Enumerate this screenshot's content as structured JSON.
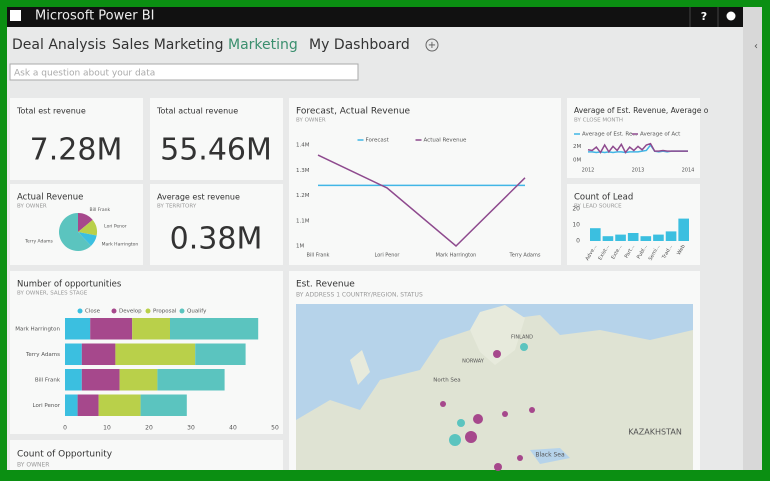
{
  "app_title": "Microsoft Power BI",
  "tabs": [
    "Deal Analysis",
    "Sales Marketing",
    "Marketing",
    "My Dashboard"
  ],
  "active_tab": 2,
  "qa_placeholder": "Ask a question about your data",
  "cards": [
    {
      "title": "Total est revenue",
      "value": "7.28M"
    },
    {
      "title": "Total actual revenue",
      "value": "55.46M"
    },
    {
      "title": "Average est revenue",
      "subtitle": "BY TERRITORY",
      "value": "0.38M"
    }
  ],
  "map": {
    "title": "Est. Revenue",
    "subtitle": "BY ADDRESS 1 COUNTRY/REGION, STATUS",
    "labels": [
      "NORWAY",
      "FINLAND",
      "North Sea",
      "Black Sea",
      "KAZAKHSTAN"
    ]
  },
  "count_opportunity": {
    "title": "Count of Opportunity",
    "subtitle": "BY OWNER"
  },
  "chart_data": [
    {
      "type": "pie",
      "title": "Actual Revenue",
      "subtitle": "BY OWNER",
      "categories": [
        "Bill Frank",
        "Lori Penor",
        "Mark Harrington",
        "Terry Adams"
      ],
      "values": [
        14,
        14,
        10,
        62
      ],
      "colors": [
        "#a6488c",
        "#b9d04a",
        "#3bbfe0",
        "#5bc4bf"
      ]
    },
    {
      "type": "line",
      "title": "Forecast, Actual Revenue",
      "subtitle": "BY OWNER",
      "categories": [
        "Bill Frank",
        "Lori Penor",
        "Mark Harrington",
        "Terry Adams"
      ],
      "series": [
        {
          "name": "Forecast",
          "color": "#41b6e6",
          "values": [
            1240000,
            1240000,
            1240000,
            1240000
          ]
        },
        {
          "name": "Actual Revenue",
          "color": "#8e4a8e",
          "values": [
            1360000,
            1230000,
            1000000,
            1270000
          ]
        }
      ],
      "ylim": [
        1000000,
        1400000
      ],
      "yticks": [
        {
          "value": 1400000,
          "label": "1.4M"
        },
        {
          "value": 1300000,
          "label": "1.3M"
        },
        {
          "value": 1200000,
          "label": "1.2M"
        },
        {
          "value": 1100000,
          "label": "1.1M"
        },
        {
          "value": 1000000,
          "label": "1M"
        }
      ]
    },
    {
      "type": "line",
      "title": "Average of Est. Revenue, Average o",
      "subtitle": "BY CLOSE MONTH",
      "categories": [
        "2012",
        null,
        null,
        null,
        null,
        null,
        null,
        null,
        null,
        null,
        null,
        null,
        "2013",
        null,
        null,
        null,
        null,
        null,
        null,
        null,
        null,
        null,
        null,
        null,
        "2014"
      ],
      "series": [
        {
          "name": "Average of Est. Re...",
          "color": "#41b6e6",
          "values": [
            1200000,
            1200000,
            1100000,
            1200000,
            1100000,
            1200000,
            1100000,
            1200000,
            1200000,
            1100000,
            1200000,
            1200000,
            1200000,
            1300000,
            1400000,
            2200000,
            1300000,
            1200000,
            1300000,
            1200000,
            1300000,
            1300000,
            1300000,
            1300000,
            1300000
          ]
        },
        {
          "name": "Average of Act",
          "color": "#8e4a8e",
          "values": [
            1500000,
            1400000,
            1900000,
            1100000,
            2200000,
            1200000,
            2000000,
            1400000,
            2300000,
            1100000,
            1900000,
            1400000,
            2000000,
            1500000,
            2200000,
            2400000,
            1300000,
            1300000,
            1400000,
            1300000,
            1300000,
            1300000,
            1300000,
            1300000,
            1300000
          ]
        }
      ],
      "ylim": [
        0,
        2500000
      ],
      "yticks": [
        {
          "value": 2000000,
          "label": "2M"
        },
        {
          "value": 0,
          "label": "0M"
        }
      ]
    },
    {
      "type": "bar",
      "title": "Count of Lead",
      "subtitle": "BY LEAD SOURCE",
      "categories": [
        "Adve...",
        "Exist...",
        "Exte...",
        "Part...",
        "Publ...",
        "Semi...",
        "Trad...",
        "Web"
      ],
      "values": [
        8,
        3,
        4,
        5,
        3,
        4,
        6,
        14
      ],
      "color": "#3bbfe0",
      "ylim": [
        0,
        20
      ],
      "yticks": [
        0,
        10,
        20
      ]
    },
    {
      "type": "hbar-stacked",
      "title": "Number of opportunities",
      "subtitle": "BY OWNER, SALES STAGE",
      "categories": [
        "Mark Harrington",
        "Terry Adams",
        "Bill Frank",
        "Lori Penor"
      ],
      "series": [
        {
          "name": "Close",
          "color": "#3bbfe0",
          "values": [
            6,
            4,
            4,
            3
          ]
        },
        {
          "name": "Develop",
          "color": "#a6488c",
          "values": [
            10,
            8,
            9,
            5
          ]
        },
        {
          "name": "Proposal",
          "color": "#b9d04a",
          "values": [
            9,
            19,
            9,
            10
          ]
        },
        {
          "name": "Qualify",
          "color": "#5bc4bf",
          "values": [
            21,
            12,
            16,
            11
          ]
        }
      ],
      "xlim": [
        0,
        50
      ],
      "xticks": [
        0,
        10,
        20,
        30,
        40,
        50
      ]
    }
  ]
}
